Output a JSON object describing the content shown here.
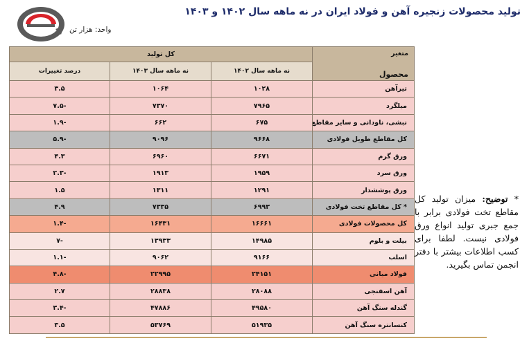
{
  "header": {
    "title": "تولید محصولات زنجیره آهن و فولاد ایران در نه ماهه سال ۱۴۰۲ و ۱۴۰۳",
    "unit": "واحد: هزار تن"
  },
  "table": {
    "col_variable": "متغیر",
    "col_product": "محصول",
    "group_header": "کل تولید",
    "col_1402": "نه ماهه سال ۱۴۰۲",
    "col_1403": "نه ماهه سال ۱۴۰۳",
    "col_change": "درصد تغییرات",
    "rows": [
      {
        "name": "تیرآهن",
        "v1402": "۱۰۲۸",
        "v1403": "۱۰۶۴",
        "change": "۳.۵"
      },
      {
        "name": "میلگرد",
        "v1402": "۷۹۶۵",
        "v1403": "۷۳۷۰",
        "change": "-۷.۵"
      },
      {
        "name": "نبشی، ناودانی و سایر مقاطع",
        "v1402": "۶۷۵",
        "v1403": "۶۶۲",
        "change": "-۱.۹"
      },
      {
        "name": "کل مقاطع طویل فولادی",
        "v1402": "۹۶۶۸",
        "v1403": "۹۰۹۶",
        "change": "-۵.۹"
      },
      {
        "name": "ورق گرم",
        "v1402": "۶۶۷۱",
        "v1403": "۶۹۶۰",
        "change": "۴.۳"
      },
      {
        "name": "ورق سرد",
        "v1402": "۱۹۵۹",
        "v1403": "۱۹۱۳",
        "change": "-۲.۳"
      },
      {
        "name": "ورق پوششدار",
        "v1402": "۱۲۹۱",
        "v1403": "۱۳۱۱",
        "change": "۱.۵"
      },
      {
        "name": "* کل مقاطع تخت فولادی",
        "v1402": "۶۹۹۳",
        "v1403": "۷۳۳۵",
        "change": "۴.۹"
      },
      {
        "name": "کل محصولات فولادی",
        "v1402": "۱۶۶۶۱",
        "v1403": "۱۶۴۳۱",
        "change": "-۱.۴"
      },
      {
        "name": "بیلت و بلوم",
        "v1402": "۱۴۹۸۵",
        "v1403": "۱۳۹۳۳",
        "change": "-۷"
      },
      {
        "name": "اسلب",
        "v1402": "۹۱۶۶",
        "v1403": "۹۰۶۲",
        "change": "-۱.۱"
      },
      {
        "name": "فولاد میانی",
        "v1402": "۲۴۱۵۱",
        "v1403": "۲۲۹۹۵",
        "change": "-۴.۸"
      },
      {
        "name": "آهن اسفنجی",
        "v1402": "۲۸۰۸۸",
        "v1403": "۲۸۸۳۸",
        "change": "۲.۷"
      },
      {
        "name": "گندله سنگ آهن",
        "v1402": "۴۹۵۸۰",
        "v1403": "۴۷۸۸۶",
        "change": "-۳.۴"
      },
      {
        "name": "کنسانتره سنگ آهن",
        "v1402": "۵۱۹۳۵",
        "v1403": "۵۳۷۶۹",
        "change": "۳.۵"
      }
    ]
  },
  "note": {
    "star": "*",
    "label": "توضیح:",
    "text": "میزان تولید کل مقاطع تخت فولادی برابر با جمع جبری تولید انواع ورق فولادی نیست. لطفا برای کسب اطلاعات بیشتر با دفتر انجمن تماس بگیرید."
  },
  "colors": {
    "pink": "#f6cfcd",
    "gray": "#bdbdbd",
    "orange": "#ef8c6f",
    "salmon": "#f5aa90",
    "header": "#c8b79d",
    "title": "#1f2d6b",
    "logo_red": "#d8232a"
  },
  "icons": {
    "logo": "association-logo"
  }
}
